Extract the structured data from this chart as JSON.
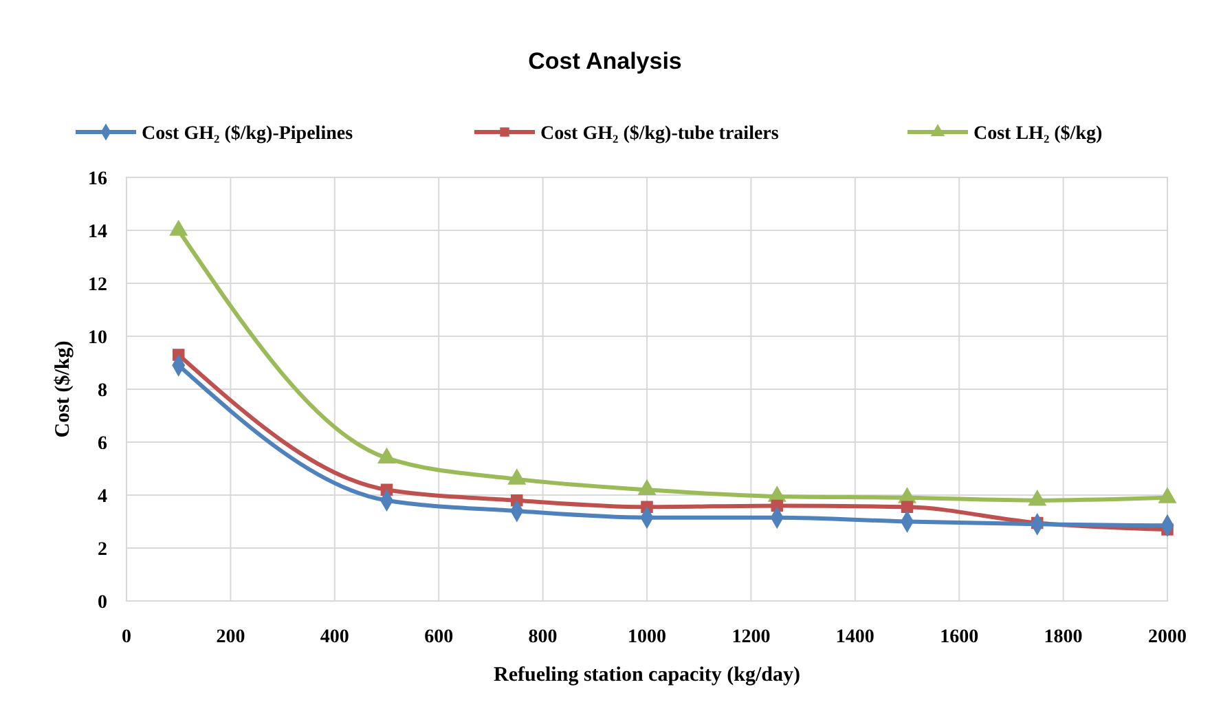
{
  "chart_data": {
    "type": "line",
    "title": "Cost Analysis",
    "xlabel": "Refueling station capacity (kg/day)",
    "ylabel": "Cost ($/kg)",
    "x": [
      100,
      500,
      750,
      1000,
      1250,
      1500,
      1750,
      2000
    ],
    "series": [
      {
        "name": "Cost GH₂ ($/kg)-Pipelines",
        "color": "#4f81bd",
        "marker": "diamond",
        "values": [
          8.9,
          3.8,
          3.4,
          3.15,
          3.15,
          3.0,
          2.9,
          2.85
        ]
      },
      {
        "name": "Cost GH₂ ($/kg)-tube trailers",
        "color": "#c0504d",
        "marker": "square",
        "values": [
          9.3,
          4.2,
          3.8,
          3.55,
          3.6,
          3.55,
          2.95,
          2.7
        ]
      },
      {
        "name": "Cost LH₂ ($/kg)",
        "color": "#9bbb59",
        "marker": "triangle",
        "values": [
          14.0,
          5.4,
          4.6,
          4.2,
          3.95,
          3.9,
          3.8,
          3.9
        ]
      }
    ],
    "xlim": [
      0,
      2000
    ],
    "xticks": [
      0,
      200,
      400,
      600,
      800,
      1000,
      1200,
      1400,
      1600,
      1800,
      2000
    ],
    "ylim": [
      0,
      16
    ],
    "yticks": [
      0,
      2,
      4,
      6,
      8,
      10,
      12,
      14,
      16
    ],
    "grid": true,
    "legend": "top",
    "line_style": "solid"
  }
}
